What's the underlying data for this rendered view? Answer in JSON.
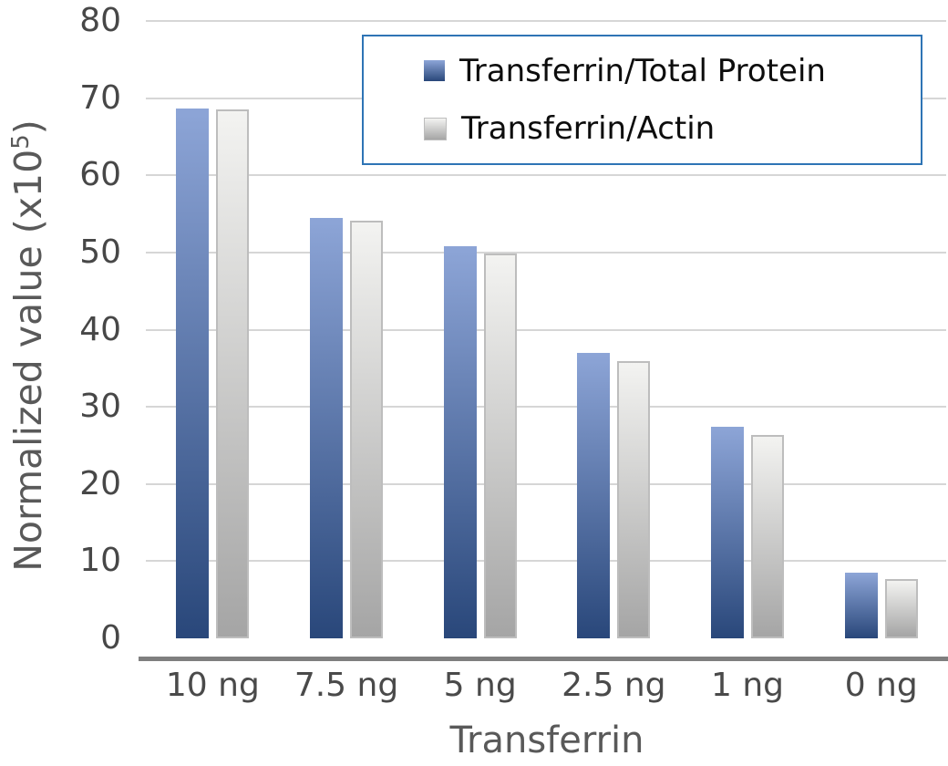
{
  "chart_data": {
    "type": "bar",
    "categories": [
      "10 ng",
      "7.5 ng",
      "5 ng",
      "2.5 ng",
      "1 ng",
      "0 ng"
    ],
    "series": [
      {
        "name": "Transferrin/Total Protein",
        "values": [
          68.6,
          54.5,
          50.8,
          37.0,
          27.4,
          8.5
        ],
        "color_top": "#8DA5D7",
        "color_bottom": "#29477A",
        "border_color": ""
      },
      {
        "name": "Transferrin/Actin",
        "values": [
          68.5,
          54.1,
          49.9,
          35.9,
          26.4,
          7.7
        ],
        "color_top": "#F3F3F1",
        "color_bottom": "#A5A5A5",
        "border_color": "#BDBDBD"
      }
    ],
    "xlabel": "Transferrin",
    "ylabel": "Normalized value (x10⁵)",
    "ylim": [
      0,
      80
    ],
    "yticks": [
      0,
      10,
      20,
      30,
      40,
      50,
      60,
      70,
      80
    ],
    "grid": true,
    "legend_position": "top-right"
  },
  "y_axis": {
    "title_main": "Normalized value  (x10",
    "title_sup": "5",
    "title_close": ")"
  },
  "colors": {
    "gridline": "#D6D6D6",
    "axis_line": "#7F7F7F",
    "tick_text": "#474747",
    "title_text": "#595959",
    "legend_border": "#2E74B5",
    "legend_text": "#0D0D0D",
    "background": "#FFFFFF"
  }
}
